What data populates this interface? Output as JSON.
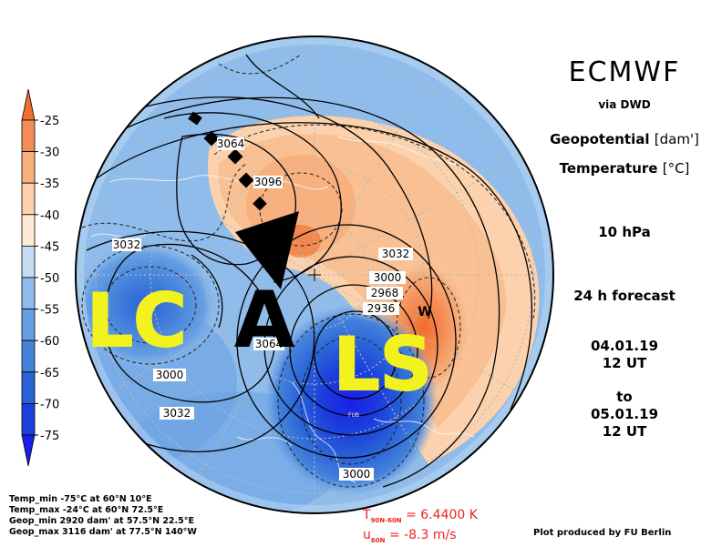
{
  "header": {
    "brand": "ECMWF",
    "via": "via DWD",
    "field1": "Geopotential",
    "field1_unit": "[dam']",
    "field2": "Temperature",
    "field2_unit": "[°C]",
    "level": "10 hPa",
    "forecast": "24 h forecast",
    "from_date": "04.01.19",
    "from_time": "12 UT",
    "to": "to",
    "to_date": "05.01.19",
    "to_time": "12 UT"
  },
  "colorbar": {
    "ticks": [
      "-25",
      "-30",
      "-35",
      "-40",
      "-45",
      "-50",
      "-55",
      "-60",
      "-65",
      "-70",
      "-75"
    ],
    "colors": [
      "#ef6d2e",
      "#f48d55",
      "#f8b07f",
      "#fbd2ad",
      "#fdebd6",
      "#c3ddf3",
      "#8fbcea",
      "#679fe3",
      "#4583db",
      "#2a62d8",
      "#1b40dc",
      "#1a1eea"
    ]
  },
  "contour_labels": [
    "3064",
    "3096",
    "3032",
    "3032",
    "3000",
    "2968",
    "2936",
    "3064",
    "3000",
    "3032",
    "3000"
  ],
  "annotations": {
    "lc": "LC",
    "ls": "LS",
    "a": "A",
    "w": "W",
    "fub": "FUB",
    "lc_color": "#f2f21e",
    "ls_color": "#f2f21e"
  },
  "stats": {
    "temp_min": "Temp_min -75°C at 60°N 10°E",
    "temp_max": "Temp_max -24°C at 60°N 72.5°E",
    "geop_min": "Geop_min 2920 dam' at 57.5°N 22.5°E",
    "geop_max": "Geop_max 3116 dam' at 77.5°N 140°W"
  },
  "indices": {
    "t_symbol": "T",
    "t_sub": "90N-60N",
    "t_value": "= 6.4400 K",
    "u_symbol": "u",
    "u_sub": "60N",
    "u_value": "= -8.3 m/s"
  },
  "credit": "Plot produced by FU Berlin"
}
